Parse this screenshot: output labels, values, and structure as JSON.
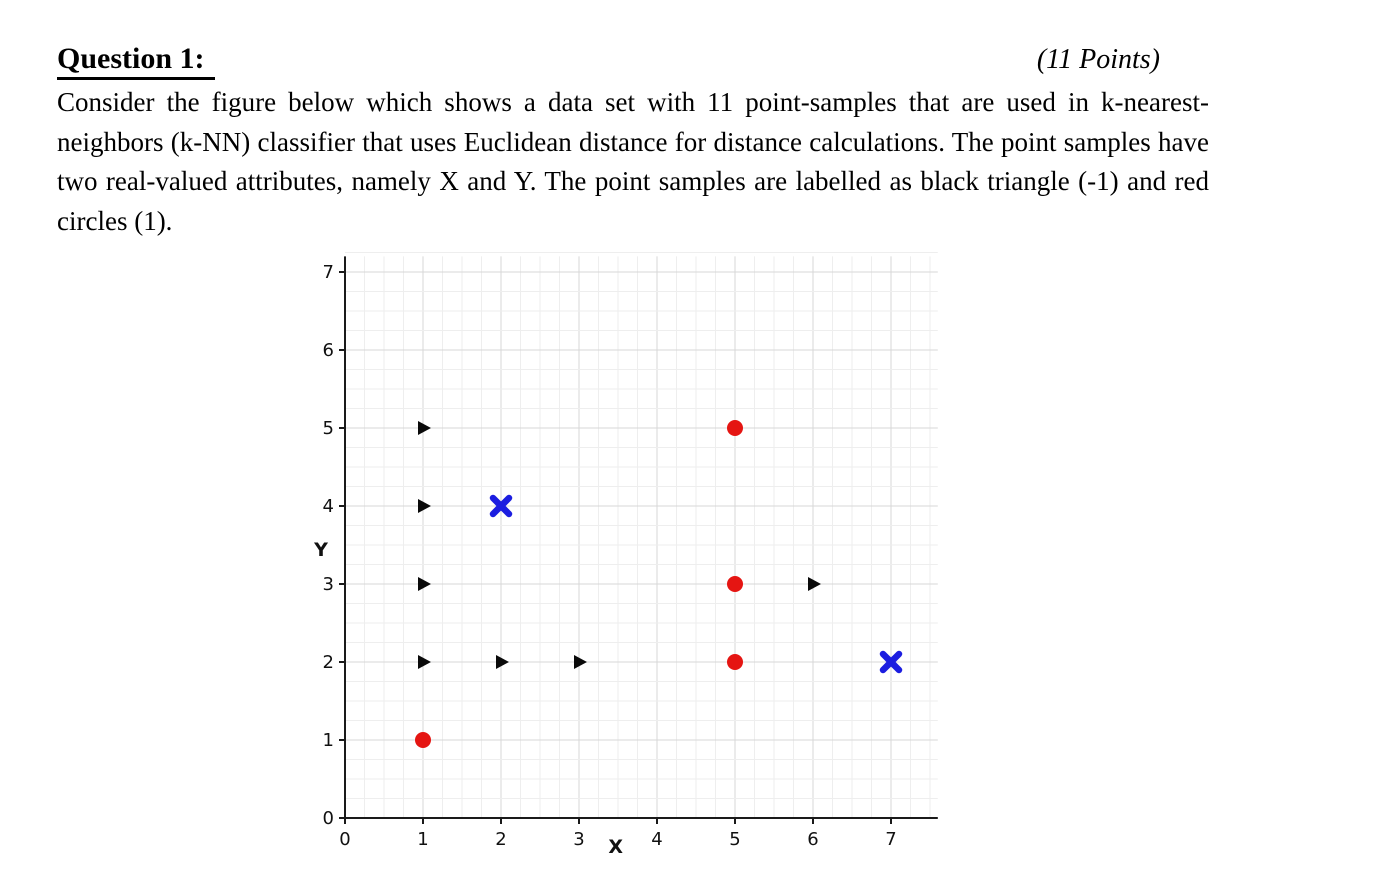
{
  "header": {
    "title": "Question 1:",
    "points": "(11 Points)"
  },
  "question": {
    "text": "Consider the figure below which shows a data set with 11 point-samples that are used in k-nearest-neighbors (k-NN) classifier that uses Euclidean distance for distance calculations. The point samples have two real-valued attributes, namely X and Y. The point samples are labelled as black triangle (-1) and red circles (1)."
  },
  "chart_data": {
    "type": "scatter",
    "title": "",
    "xlabel": "X",
    "ylabel": "Y",
    "xlim": [
      0,
      7.6
    ],
    "ylim": [
      0,
      7.2
    ],
    "x_ticks": [
      0,
      1,
      2,
      3,
      4,
      5,
      6,
      7
    ],
    "y_ticks": [
      0,
      1,
      2,
      3,
      4,
      5,
      6,
      7
    ],
    "grid": true,
    "minor_grid": true,
    "series": [
      {
        "name": "black triangle",
        "class_label": "-1",
        "marker": "triangle-right",
        "marker_name": "black-triangle-marker",
        "color": "#0a0a0a",
        "points": [
          [
            1,
            5
          ],
          [
            1,
            4
          ],
          [
            1,
            3
          ],
          [
            1,
            2
          ],
          [
            2,
            2
          ],
          [
            3,
            2
          ],
          [
            6,
            3
          ]
        ]
      },
      {
        "name": "red circle",
        "class_label": "1",
        "marker": "circle",
        "marker_name": "red-circle-marker",
        "color": "#e51512",
        "points": [
          [
            5,
            5
          ],
          [
            5,
            3
          ],
          [
            5,
            2
          ],
          [
            1,
            1
          ]
        ]
      },
      {
        "name": "blue x query point",
        "class_label": "query",
        "marker": "x",
        "marker_name": "blue-x-marker",
        "color": "#1b1de0",
        "points": [
          [
            2,
            4
          ],
          [
            7,
            2
          ]
        ]
      }
    ]
  }
}
